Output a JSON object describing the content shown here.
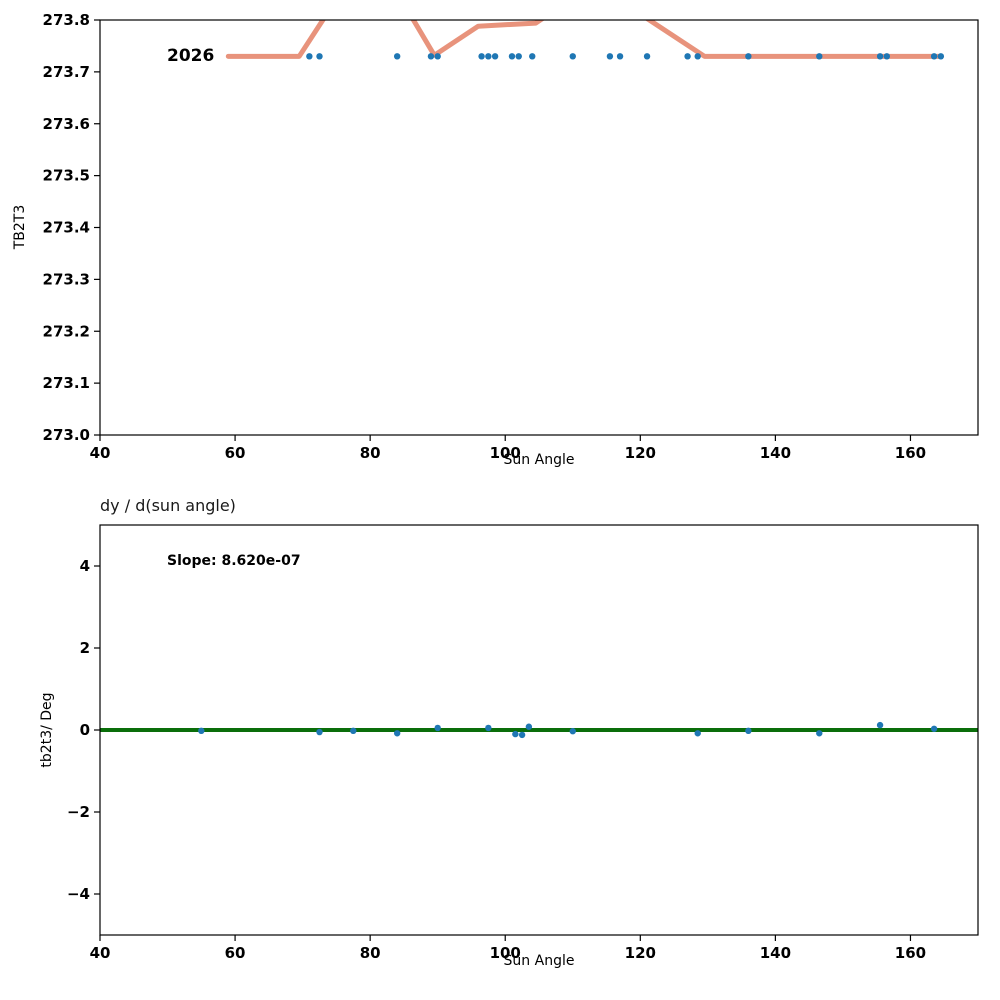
{
  "chart_data": [
    {
      "type": "scatter",
      "title": "",
      "xlabel": "Sun Angle",
      "ylabel": "TB2T3",
      "xlim": [
        40,
        170
      ],
      "ylim": [
        273.0,
        273.8
      ],
      "xticks": [
        40,
        60,
        80,
        100,
        120,
        140,
        160
      ],
      "yticks": [
        273.0,
        273.1,
        273.2,
        273.3,
        273.4,
        273.5,
        273.6,
        273.7,
        273.8
      ],
      "ytick_decimals": 1,
      "grid": false,
      "annotation": {
        "text": "2026",
        "x": 50.5,
        "y": 273.73
      },
      "series": [
        {
          "name": "fit-line",
          "type": "line",
          "color": "#e8937c",
          "width": 5,
          "points": [
            [
              59,
              273.73
            ],
            [
              69.5,
              273.73
            ],
            [
              74,
              273.82
            ],
            [
              85.5,
              273.82
            ],
            [
              89.5,
              273.732
            ],
            [
              96,
              273.788
            ],
            [
              104.5,
              273.794
            ],
            [
              107.5,
              273.82
            ],
            [
              119,
              273.82
            ],
            [
              129.5,
              273.73
            ],
            [
              164.5,
              273.73
            ]
          ]
        },
        {
          "name": "tb2t3-scatter",
          "type": "scatter",
          "color": "#1f77b4",
          "size": 3.2,
          "points": [
            [
              71,
              273.73
            ],
            [
              72.5,
              273.73
            ],
            [
              84,
              273.73
            ],
            [
              89,
              273.73
            ],
            [
              90,
              273.73
            ],
            [
              96.5,
              273.73
            ],
            [
              97.5,
              273.73
            ],
            [
              98.5,
              273.73
            ],
            [
              101,
              273.73
            ],
            [
              102,
              273.73
            ],
            [
              104,
              273.73
            ],
            [
              110,
              273.73
            ],
            [
              115.5,
              273.73
            ],
            [
              117,
              273.73
            ],
            [
              121,
              273.73
            ],
            [
              127,
              273.73
            ],
            [
              128.5,
              273.73
            ],
            [
              136,
              273.73
            ],
            [
              146.5,
              273.73
            ],
            [
              155.5,
              273.73
            ],
            [
              156.5,
              273.73
            ],
            [
              163.5,
              273.73
            ],
            [
              164.5,
              273.73
            ]
          ]
        }
      ]
    },
    {
      "type": "scatter",
      "title": "dy / d(sun angle)",
      "xlabel": "Sun Angle",
      "ylabel": "tb2t3/ Deg",
      "xlim": [
        40,
        170
      ],
      "ylim": [
        -5,
        5
      ],
      "xticks": [
        40,
        60,
        80,
        100,
        120,
        140,
        160
      ],
      "yticks": [
        -4,
        -2,
        0,
        2,
        4
      ],
      "ytick_decimals": 0,
      "grid": false,
      "annotation": {
        "text": "Slope: 8.620e-07",
        "x": 50,
        "y": 4.1
      },
      "series": [
        {
          "name": "zero-slope-line",
          "type": "line",
          "color": "#0a6e0a",
          "width": 4,
          "points": [
            [
              40,
              0
            ],
            [
              170,
              0
            ]
          ]
        },
        {
          "name": "derivative-scatter",
          "type": "scatter",
          "color": "#1f77b4",
          "size": 3.2,
          "points": [
            [
              55,
              -0.02
            ],
            [
              72.5,
              -0.05
            ],
            [
              77.5,
              -0.02
            ],
            [
              84,
              -0.08
            ],
            [
              90,
              0.05
            ],
            [
              97.5,
              0.05
            ],
            [
              101.5,
              -0.1
            ],
            [
              102.5,
              -0.12
            ],
            [
              103.5,
              0.08
            ],
            [
              110,
              -0.03
            ],
            [
              128.5,
              -0.08
            ],
            [
              136,
              -0.02
            ],
            [
              146.5,
              -0.08
            ],
            [
              155.5,
              0.12
            ],
            [
              163.5,
              0.03
            ]
          ]
        }
      ]
    }
  ]
}
